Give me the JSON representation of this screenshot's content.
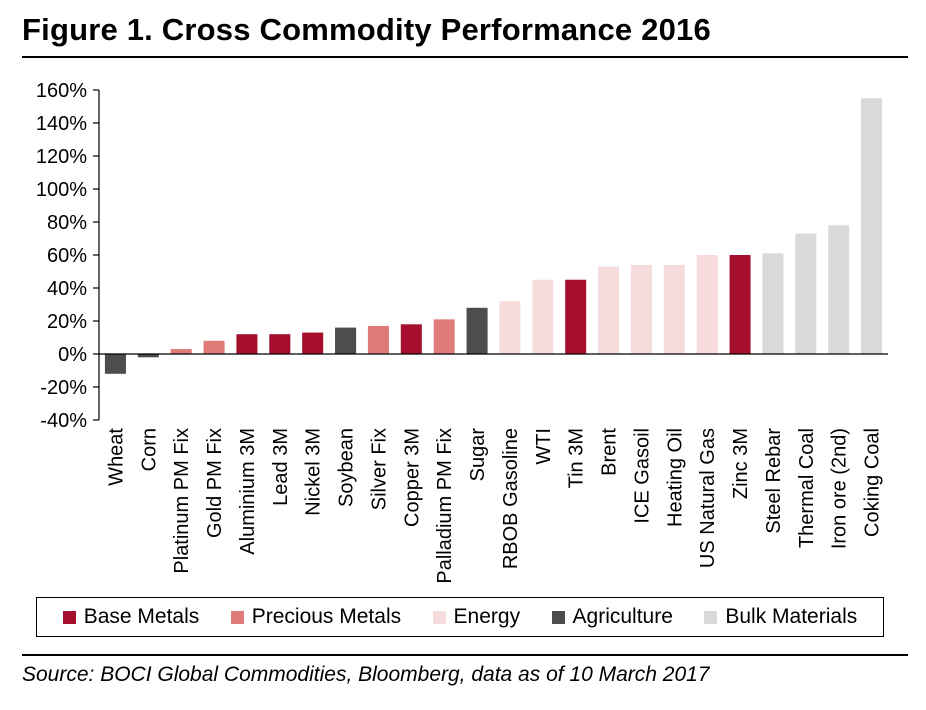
{
  "title": "Figure 1. Cross Commodity Performance 2016",
  "source": "Source: BOCI Global Commodities, Bloomberg, data as of 10 March 2017",
  "colors": {
    "Base Metals": "#a50f2d",
    "Precious Metals": "#df7b78",
    "Energy": "#f6dcdc",
    "Agriculture": "#4d4d4d",
    "Bulk Materials": "#d9d9d9"
  },
  "legend": [
    {
      "label": "Base Metals",
      "color": "#a50f2d"
    },
    {
      "label": "Precious Metals",
      "color": "#df7b78"
    },
    {
      "label": "Energy",
      "color": "#f6dcdc"
    },
    {
      "label": "Agriculture",
      "color": "#4d4d4d"
    },
    {
      "label": "Bulk Materials",
      "color": "#d9d9d9"
    }
  ],
  "chart_data": {
    "type": "bar",
    "title": "Figure 1. Cross Commodity Performance 2016",
    "xlabel": "",
    "ylabel": "",
    "ylim": [
      -40,
      160
    ],
    "yticks": [
      -40,
      -20,
      0,
      20,
      40,
      60,
      80,
      100,
      120,
      140,
      160
    ],
    "ytick_labels": [
      "-40%",
      "-20%",
      "0%",
      "20%",
      "40%",
      "60%",
      "80%",
      "100%",
      "120%",
      "140%",
      "160%"
    ],
    "grid": false,
    "legend_position": "bottom",
    "categories": [
      "Wheat",
      "Corn",
      "Platinum PM Fix",
      "Gold PM Fix",
      "Aluminium 3M",
      "Lead 3M",
      "Nickel 3M",
      "Soybean",
      "Silver Fix",
      "Copper 3M",
      "Palladium PM Fix",
      "Sugar",
      "RBOB Gasoline",
      "WTI",
      "Tin 3M",
      "Brent",
      "ICE Gasoil",
      "Heating Oil",
      "US Natural Gas",
      "Zinc 3M",
      "Steel Rebar",
      "Thermal Coal",
      "Iron ore (2nd)",
      "Coking Coal"
    ],
    "values": [
      -12,
      -2,
      3,
      8,
      12,
      12,
      13,
      16,
      17,
      18,
      21,
      28,
      32,
      45,
      45,
      53,
      54,
      54,
      60,
      60,
      61,
      73,
      78,
      155
    ],
    "groups": [
      "Agriculture",
      "Agriculture",
      "Precious Metals",
      "Precious Metals",
      "Base Metals",
      "Base Metals",
      "Base Metals",
      "Agriculture",
      "Precious Metals",
      "Base Metals",
      "Precious Metals",
      "Agriculture",
      "Energy",
      "Energy",
      "Base Metals",
      "Energy",
      "Energy",
      "Energy",
      "Energy",
      "Base Metals",
      "Bulk Materials",
      "Bulk Materials",
      "Bulk Materials",
      "Bulk Materials"
    ]
  }
}
